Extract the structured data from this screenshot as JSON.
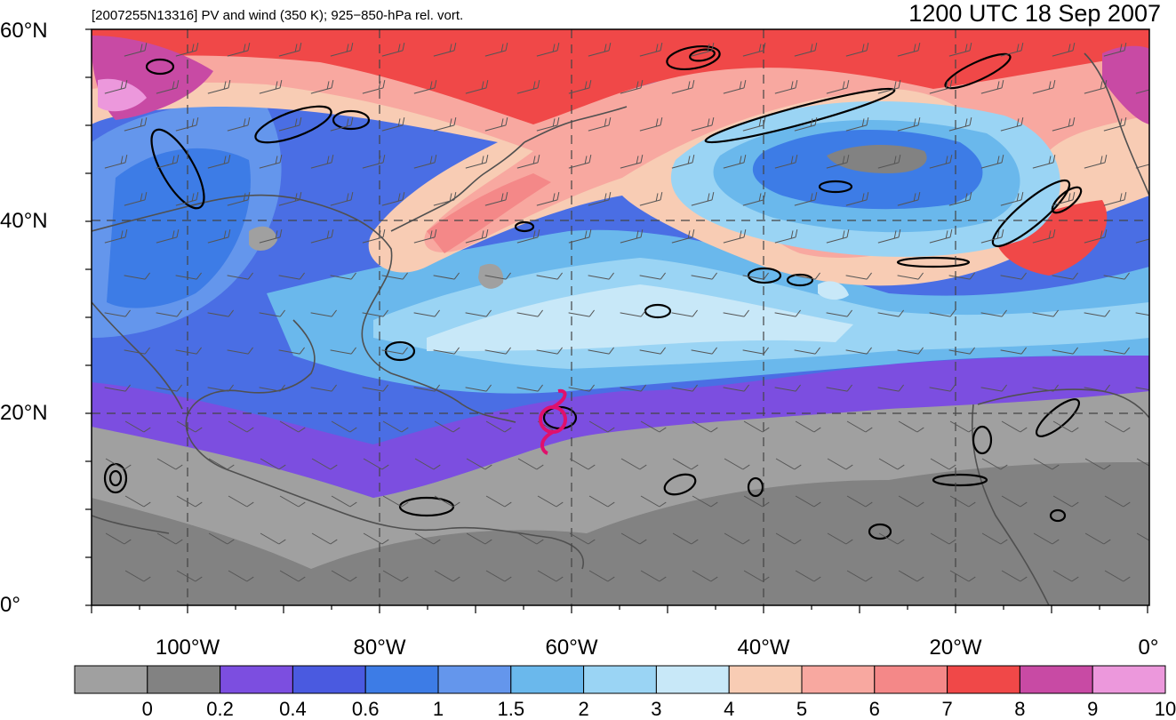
{
  "header": {
    "left_title": "[2007255N13316] PV and wind (350 K); 925−850-hPa rel. vort.",
    "right_title": "1200 UTC 18 Sep 2007"
  },
  "axes": {
    "lat_labels": [
      "60°N",
      "40°N",
      "20°N",
      "0°"
    ],
    "lon_labels": [
      "100°W",
      "80°W",
      "60°W",
      "40°W",
      "20°W",
      "0°"
    ]
  },
  "colorbar": {
    "colors": [
      "#a0a0a0",
      "#828282",
      "#7c4ee0",
      "#4a5ae0",
      "#3d7ce6",
      "#6496ec",
      "#6ab8ec",
      "#9ad4f4",
      "#c8e8f8",
      "#f8ccb4",
      "#f8a8a0",
      "#f48888",
      "#f04848",
      "#c84aa4",
      "#ec98dc"
    ],
    "labels": [
      "0",
      "0.2",
      "0.4",
      "0.6",
      "1",
      "1.5",
      "2",
      "3",
      "4",
      "5",
      "6",
      "7",
      "8",
      "9",
      "10"
    ]
  },
  "storm_marker": {
    "color": "#e0106c",
    "icon": "tropical-cyclone-icon"
  }
}
